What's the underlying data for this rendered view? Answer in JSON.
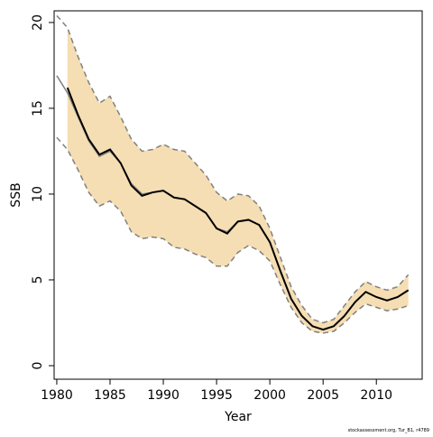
{
  "chart_data": {
    "type": "line",
    "x_label": "Year",
    "y_label": "SSB",
    "footnote": "stockassessment.org, Tur_B1, r4789",
    "x": [
      1980,
      1981,
      1982,
      1983,
      1984,
      1985,
      1986,
      1987,
      1988,
      1989,
      1990,
      1991,
      1992,
      1993,
      1994,
      1995,
      1996,
      1997,
      1998,
      1999,
      2000,
      2001,
      2002,
      2003,
      2004,
      2005,
      2006,
      2007,
      2008,
      2009,
      2010,
      2011,
      2012,
      2013
    ],
    "series": [
      {
        "role": "band-upper",
        "color": "#808080",
        "band_color": "#f5deb3",
        "values": [
          20.4,
          19.7,
          18.0,
          16.5,
          15.3,
          15.7,
          14.5,
          13.2,
          12.5,
          12.6,
          12.9,
          12.6,
          12.5,
          11.8,
          11.1,
          10.1,
          9.6,
          10.0,
          9.9,
          9.3,
          8.0,
          6.3,
          4.6,
          3.5,
          2.7,
          2.5,
          2.7,
          3.5,
          4.3,
          4.9,
          4.6,
          4.4,
          4.6,
          5.3
        ]
      },
      {
        "role": "band-lower",
        "color": "#808080",
        "values": [
          13.3,
          12.6,
          11.4,
          10.1,
          9.3,
          9.6,
          9.0,
          7.8,
          7.4,
          7.5,
          7.4,
          6.9,
          6.8,
          6.5,
          6.3,
          5.8,
          5.8,
          6.6,
          7.0,
          6.7,
          6.1,
          4.7,
          3.4,
          2.5,
          2.0,
          1.9,
          2.0,
          2.5,
          3.1,
          3.6,
          3.4,
          3.2,
          3.3,
          3.5
        ]
      },
      {
        "role": "previous",
        "color": "#808080",
        "values": [
          16.9,
          15.9,
          14.5,
          13.1,
          12.2,
          12.5,
          11.8,
          10.6,
          10.0,
          10.1,
          10.2,
          9.8,
          9.7,
          9.3,
          8.9,
          8.0,
          7.8,
          8.4,
          8.5,
          8.2,
          7.2,
          5.5,
          3.9,
          2.9,
          2.3,
          2.1,
          2.3,
          2.9,
          3.7,
          4.3,
          4.0,
          3.8,
          4.0,
          4.4
        ]
      },
      {
        "role": "estimate",
        "color": "#000000",
        "values": [
          null,
          16.2,
          14.6,
          13.2,
          12.3,
          12.6,
          11.8,
          10.5,
          9.9,
          10.1,
          10.2,
          9.8,
          9.7,
          9.3,
          8.9,
          8.0,
          7.7,
          8.4,
          8.5,
          8.2,
          7.2,
          5.5,
          3.9,
          2.9,
          2.3,
          2.1,
          2.3,
          2.9,
          3.7,
          4.3,
          4.0,
          3.8,
          4.0,
          4.4
        ]
      }
    ],
    "xlim": [
      1979.75,
      2014.3
    ],
    "ylim": [
      -0.79,
      20.68
    ],
    "xticks": [
      1980,
      1985,
      1990,
      1995,
      2000,
      2005,
      2010
    ],
    "yticks": [
      0,
      5,
      10,
      15,
      20
    ]
  }
}
